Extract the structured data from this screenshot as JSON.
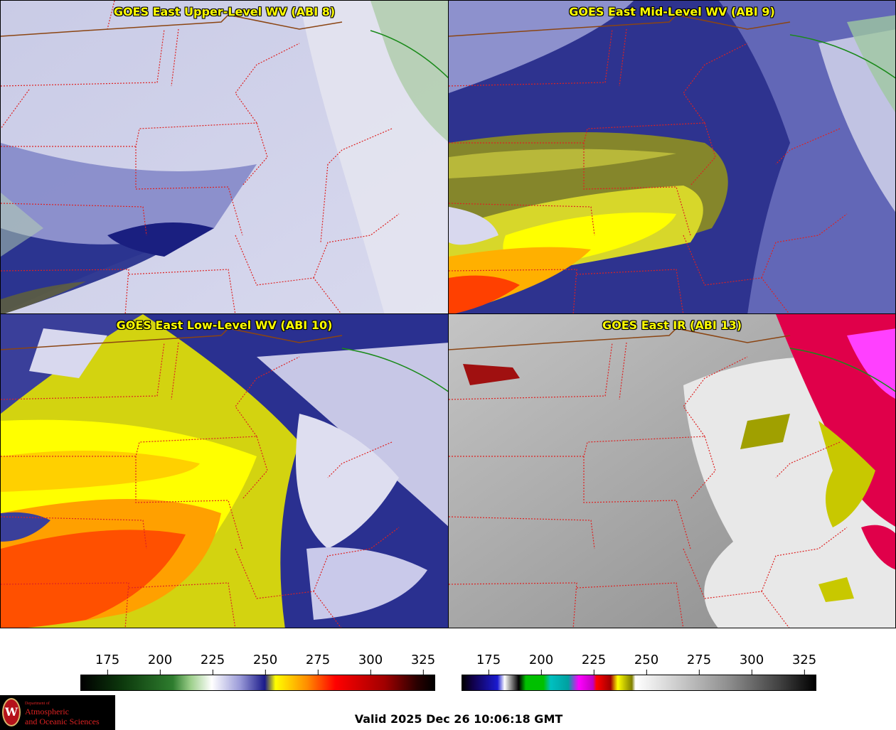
{
  "panels": {
    "upper": {
      "title": "GOES East Upper-Level WV (ABI 8)"
    },
    "mid": {
      "title": "GOES East Mid-Level WV (ABI 9)"
    },
    "low": {
      "title": "GOES East Low-Level WV (ABI 10)"
    },
    "ir": {
      "title": "GOES East IR (ABI 13)"
    }
  },
  "colorbars": {
    "wv": {
      "ticks": [
        "175",
        "200",
        "225",
        "250",
        "275",
        "300",
        "325"
      ]
    },
    "ir": {
      "ticks": [
        "175",
        "200",
        "225",
        "250",
        "275",
        "300",
        "325"
      ]
    }
  },
  "logo": {
    "line1": "Department of",
    "line2": "Atmospheric",
    "line3": "and Oceanic Sciences",
    "seal": "W"
  },
  "valid": "Valid 2025 Dec 26 10:06:18 GMT",
  "colors": {
    "title": "#ffff00",
    "state_borders": "#dd2222",
    "intl_border": "#8b4513",
    "coast": "#1a8a1a"
  }
}
